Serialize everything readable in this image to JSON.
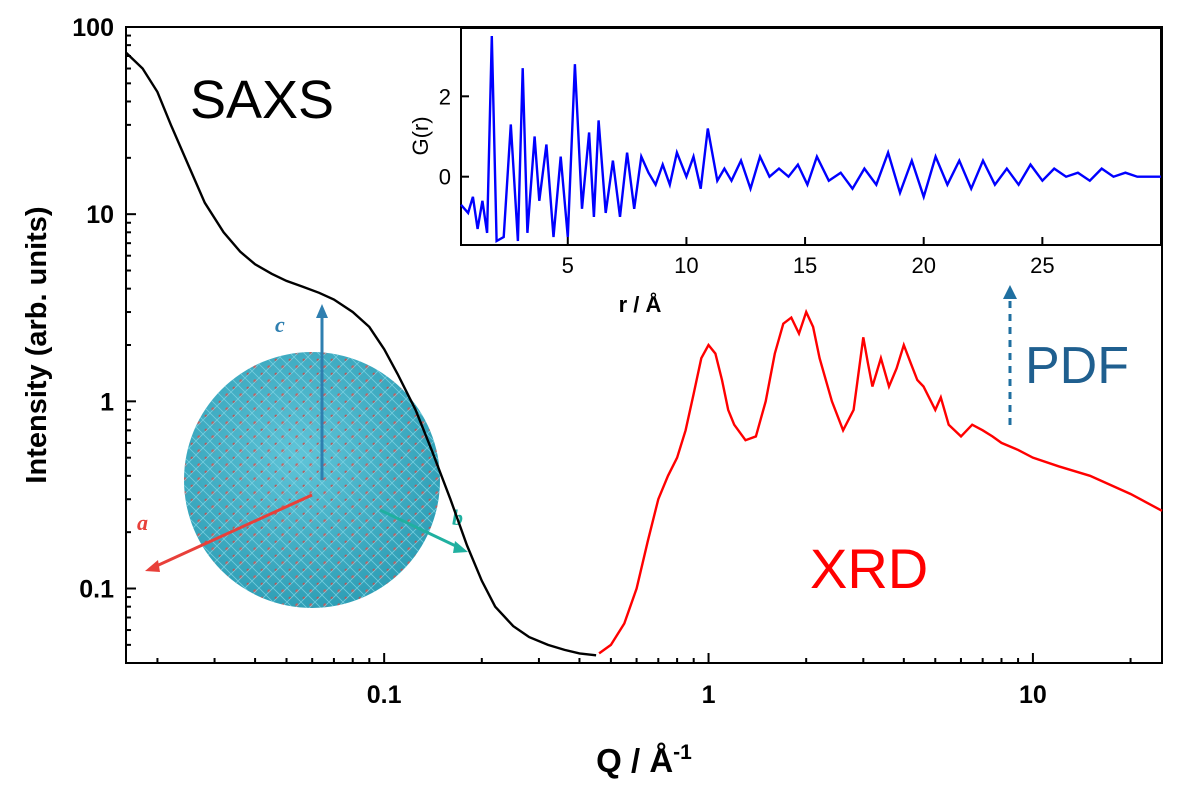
{
  "chart_data": [
    {
      "type": "line",
      "xscale": "log",
      "yscale": "log",
      "xlabel": "Q / Å",
      "xlabel_sup": "-1",
      "ylabel": "Intensity (arb. units)",
      "xlim": [
        0.016,
        25
      ],
      "ylim": [
        0.04,
        100
      ],
      "x_ticks": [
        {
          "value": 0.1,
          "label": "0.1"
        },
        {
          "value": 1,
          "label": "1"
        },
        {
          "value": 10,
          "label": "10"
        }
      ],
      "y_ticks": [
        {
          "value": 0.1,
          "label": "0.1"
        },
        {
          "value": 1,
          "label": "1"
        },
        {
          "value": 10,
          "label": "10"
        },
        {
          "value": 100,
          "label": "100"
        }
      ],
      "series": [
        {
          "name": "SAXS",
          "color": "#000000",
          "x": [
            0.016,
            0.018,
            0.02,
            0.022,
            0.025,
            0.028,
            0.032,
            0.036,
            0.04,
            0.045,
            0.05,
            0.056,
            0.063,
            0.07,
            0.08,
            0.09,
            0.1,
            0.11,
            0.125,
            0.14,
            0.16,
            0.18,
            0.2,
            0.22,
            0.25,
            0.28,
            0.32,
            0.36,
            0.4,
            0.45
          ],
          "y": [
            73,
            60,
            45,
            30,
            18,
            11.5,
            8,
            6.3,
            5.4,
            4.8,
            4.4,
            4.1,
            3.8,
            3.5,
            3.0,
            2.5,
            1.9,
            1.4,
            0.9,
            0.55,
            0.3,
            0.17,
            0.11,
            0.08,
            0.063,
            0.055,
            0.05,
            0.047,
            0.045,
            0.044
          ]
        },
        {
          "name": "XRD",
          "color": "#ff0000",
          "x": [
            0.46,
            0.5,
            0.55,
            0.6,
            0.65,
            0.7,
            0.75,
            0.8,
            0.85,
            0.9,
            0.95,
            1.0,
            1.05,
            1.1,
            1.15,
            1.2,
            1.3,
            1.4,
            1.5,
            1.6,
            1.7,
            1.8,
            1.9,
            2.0,
            2.1,
            2.2,
            2.4,
            2.6,
            2.8,
            3.0,
            3.1,
            3.2,
            3.4,
            3.6,
            3.8,
            4.0,
            4.2,
            4.4,
            4.6,
            5.0,
            5.2,
            5.5,
            6.0,
            6.5,
            7.0,
            7.5,
            8.0,
            9.0,
            10,
            12,
            15,
            20,
            25
          ],
          "y": [
            0.045,
            0.05,
            0.065,
            0.1,
            0.18,
            0.3,
            0.4,
            0.5,
            0.7,
            1.1,
            1.7,
            2.0,
            1.8,
            1.3,
            0.9,
            0.75,
            0.62,
            0.65,
            1.0,
            1.8,
            2.6,
            2.8,
            2.3,
            3.0,
            2.5,
            1.7,
            1.0,
            0.7,
            0.9,
            2.2,
            1.6,
            1.2,
            1.7,
            1.2,
            1.5,
            2.0,
            1.6,
            1.3,
            1.2,
            0.9,
            1.05,
            0.75,
            0.65,
            0.75,
            0.7,
            0.65,
            0.6,
            0.55,
            0.5,
            0.45,
            0.4,
            0.32,
            0.26
          ]
        }
      ],
      "annotations": {
        "saxs_label": "SAXS",
        "xrd_label": "XRD",
        "pdf_label": "PDF",
        "axis_a": "a",
        "axis_b": "b",
        "axis_c": "c"
      }
    },
    {
      "type": "line",
      "inset": true,
      "xlabel": "r / Å",
      "ylabel": "G(r)",
      "xlim": [
        0.5,
        30
      ],
      "ylim": [
        -1.7,
        3.7
      ],
      "x_ticks": [
        {
          "value": 5,
          "label": "5"
        },
        {
          "value": 10,
          "label": "10"
        },
        {
          "value": 15,
          "label": "15"
        },
        {
          "value": 20,
          "label": "20"
        },
        {
          "value": 25,
          "label": "25"
        }
      ],
      "y_ticks": [
        {
          "value": 0,
          "label": "0"
        },
        {
          "value": 2,
          "label": "2"
        }
      ],
      "series": [
        {
          "color": "#0000ff",
          "x": [
            0.5,
            0.8,
            1.0,
            1.2,
            1.4,
            1.6,
            1.8,
            2.0,
            2.3,
            2.6,
            2.9,
            3.1,
            3.3,
            3.6,
            3.8,
            4.1,
            4.4,
            4.7,
            5.0,
            5.3,
            5.6,
            5.9,
            6.1,
            6.3,
            6.6,
            6.9,
            7.2,
            7.5,
            7.8,
            8.1,
            8.4,
            8.7,
            9.0,
            9.3,
            9.6,
            10.0,
            10.3,
            10.6,
            10.9,
            11.3,
            11.6,
            11.9,
            12.3,
            12.7,
            13.1,
            13.5,
            13.9,
            14.3,
            14.7,
            15.1,
            15.5,
            16.0,
            16.5,
            17.0,
            17.5,
            18.0,
            18.5,
            19.0,
            19.5,
            20.0,
            20.5,
            21.0,
            21.5,
            22.0,
            22.5,
            23.0,
            23.5,
            24.0,
            24.5,
            25.0,
            25.5,
            26.0,
            26.5,
            27.0,
            27.5,
            28.0,
            28.5,
            29.0,
            29.5,
            30.0
          ],
          "y": [
            -0.7,
            -0.9,
            -0.5,
            -1.3,
            -0.6,
            -1.4,
            3.5,
            -1.6,
            -1.5,
            1.3,
            -1.6,
            2.7,
            -1.4,
            1.0,
            -0.6,
            0.8,
            -1.5,
            0.5,
            -1.5,
            2.8,
            -0.8,
            1.1,
            -1.0,
            1.4,
            -0.9,
            0.4,
            -1.0,
            0.6,
            -0.8,
            0.5,
            0.1,
            -0.2,
            0.3,
            -0.2,
            0.6,
            0.0,
            0.5,
            -0.3,
            1.2,
            -0.1,
            0.2,
            -0.1,
            0.4,
            -0.3,
            0.5,
            0.0,
            0.2,
            0.0,
            0.3,
            -0.2,
            0.5,
            -0.1,
            0.1,
            -0.3,
            0.2,
            -0.2,
            0.6,
            -0.4,
            0.4,
            -0.5,
            0.5,
            -0.2,
            0.4,
            -0.3,
            0.4,
            -0.2,
            0.2,
            -0.2,
            0.3,
            -0.1,
            0.2,
            0.0,
            0.1,
            -0.1,
            0.2,
            0.0,
            0.1,
            0.0,
            0.0,
            0.0
          ]
        }
      ]
    }
  ]
}
